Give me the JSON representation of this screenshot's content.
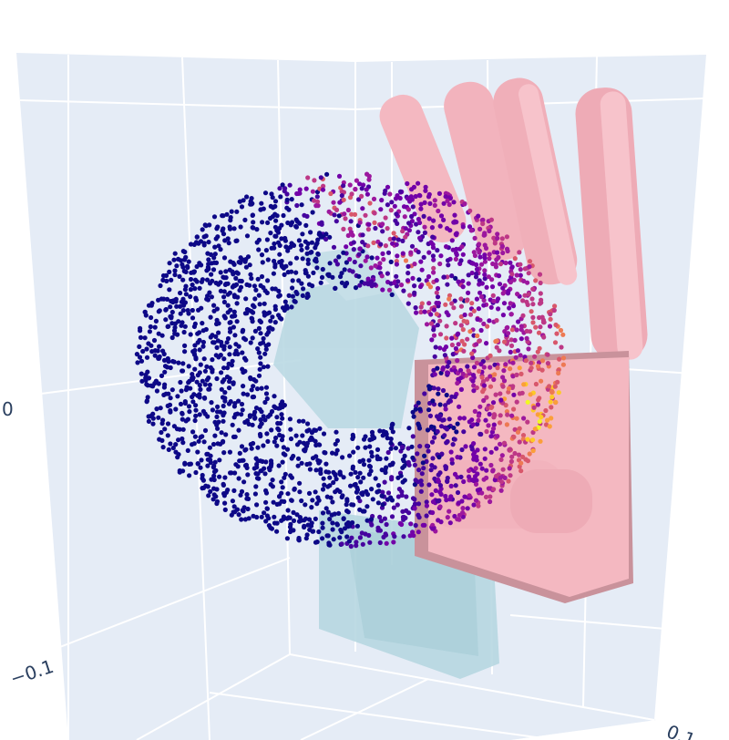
{
  "axes": {
    "tick_labels": [
      {
        "id": "vertical-zero",
        "text": "0"
      },
      {
        "id": "vertical-minus",
        "text": "−0.1"
      },
      {
        "id": "bottom-right",
        "text": "0.1"
      }
    ]
  },
  "colors": {
    "scene_background": "#e5ecf6",
    "grid": "#ffffff",
    "robot_hand_pink": "#f4b8c1",
    "robot_hand_pink_shade": "#c9929b",
    "second_hand_lightblue": "#b7d8e2",
    "point_colorscale": [
      "#0d0887",
      "#46039f",
      "#7201a8",
      "#9c179e",
      "#bd3786",
      "#d8576b",
      "#ed7953",
      "#fb9f3a",
      "#fdca26",
      "#f0f921"
    ]
  },
  "point_cloud": {
    "colorscale_name": "Plasma",
    "count": 2600
  }
}
